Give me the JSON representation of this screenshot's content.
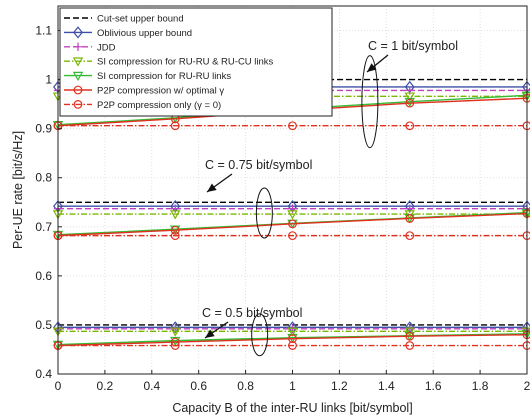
{
  "chart_data": {
    "type": "line",
    "xlabel": "Capacity B of the inter-RU links [bit/symbol]",
    "ylabel": "Per-UE rate [bit/s/Hz]",
    "xlim": [
      0,
      2
    ],
    "ylim": [
      0.4,
      1.15
    ],
    "xticks": [
      "0",
      "0.2",
      "0.4",
      "0.6",
      "0.8",
      "1",
      "1.2",
      "1.4",
      "1.6",
      "1.8",
      "2"
    ],
    "yticks": [
      "0.4",
      "0.5",
      "0.6",
      "0.7",
      "0.8",
      "0.9",
      "1",
      "1.1"
    ],
    "grid": true,
    "legend_position": "top-left",
    "x": [
      0,
      0.5,
      1,
      1.5,
      2
    ],
    "series": [
      {
        "name": "Cut-set upper bound",
        "color": "#000000",
        "dash": "dashed",
        "marker": "none",
        "groups": {
          "C=1": [
            1.0,
            1.0,
            1.0,
            1.0,
            1.0
          ],
          "C=0.75": [
            0.75,
            0.75,
            0.75,
            0.75,
            0.75
          ],
          "C=0.5": [
            0.5,
            0.5,
            0.5,
            0.5,
            0.5
          ]
        }
      },
      {
        "name": "Oblivious upper bound",
        "color": "#3d4fa8",
        "dash": "solid",
        "marker": "diamond",
        "groups": {
          "C=1": [
            0.985,
            0.985,
            0.985,
            0.985,
            0.985
          ],
          "C=0.75": [
            0.742,
            0.742,
            0.742,
            0.742,
            0.742
          ],
          "C=0.5": [
            0.495,
            0.495,
            0.495,
            0.495,
            0.495
          ]
        }
      },
      {
        "name": "JDD",
        "color": "#c040c0",
        "dash": "dashed",
        "marker": "plus",
        "groups": {
          "C=1": [
            0.978,
            0.978,
            0.978,
            0.978,
            0.978
          ],
          "C=0.75": [
            0.737,
            0.737,
            0.737,
            0.737,
            0.737
          ],
          "C=0.5": [
            0.492,
            0.492,
            0.492,
            0.492,
            0.492
          ]
        }
      },
      {
        "name": "SI compression for RU-RU & RU-CU links",
        "color": "#7ab800",
        "dash": "dashdot",
        "marker": "triangle-down",
        "groups": {
          "C=1": [
            0.966,
            0.966,
            0.966,
            0.966,
            0.966
          ],
          "C=0.75": [
            0.726,
            0.726,
            0.726,
            0.726,
            0.726
          ],
          "C=0.5": [
            0.487,
            0.487,
            0.487,
            0.487,
            0.487
          ]
        }
      },
      {
        "name": "SI compression for RU-RU links",
        "color": "#33bb33",
        "dash": "solid",
        "marker": "triangle-down",
        "groups": {
          "C=1": [
            0.908,
            0.922,
            0.94,
            0.955,
            0.968
          ],
          "C=0.75": [
            0.684,
            0.695,
            0.707,
            0.718,
            0.729
          ],
          "C=0.5": [
            0.46,
            0.468,
            0.474,
            0.478,
            0.482
          ]
        }
      },
      {
        "name": "P2P compression w/ optimal γ",
        "color": "#e03020",
        "dash": "solid",
        "marker": "circle",
        "groups": {
          "C=1": [
            0.906,
            0.92,
            0.937,
            0.952,
            0.962
          ],
          "C=0.75": [
            0.682,
            0.693,
            0.706,
            0.717,
            0.727
          ],
          "C=0.5": [
            0.458,
            0.465,
            0.472,
            0.477,
            0.48
          ]
        }
      },
      {
        "name": "P2P compression only (γ = 0)",
        "color": "#e03020",
        "dash": "dashdot",
        "marker": "circle",
        "groups": {
          "C=1": [
            0.906,
            0.906,
            0.906,
            0.906,
            0.906
          ],
          "C=0.75": [
            0.682,
            0.682,
            0.682,
            0.682,
            0.682
          ],
          "C=0.5": [
            0.458,
            0.458,
            0.458,
            0.458,
            0.458
          ]
        }
      }
    ],
    "annotations": [
      {
        "text": "C = 1 bit/symbol",
        "x": 1.33,
        "y": 0.955
      },
      {
        "text": "C = 0.75 bit/symbol",
        "x": 0.88,
        "y": 0.728
      },
      {
        "text": "C = 0.5 bit/symbol",
        "x": 0.86,
        "y": 0.48
      }
    ]
  }
}
